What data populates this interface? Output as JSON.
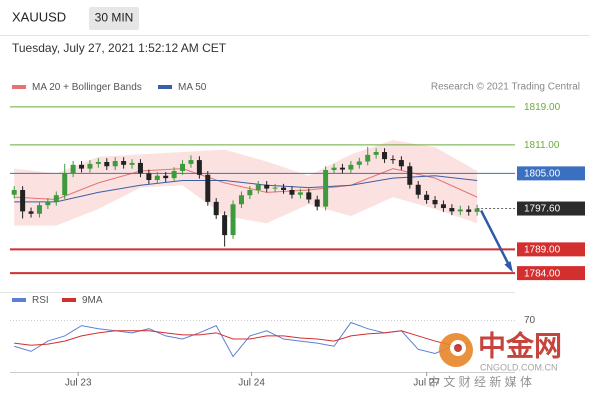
{
  "header": {
    "symbol": "XAUUSD",
    "timeframe": "30 MIN",
    "timestamp": "Tuesday, July 27, 2021 1:52:12 AM CET"
  },
  "chart_data": [
    {
      "type": "candlestick",
      "source": "Research © 2021 Trading Central",
      "xlim": [
        -0.5,
        59.5
      ],
      "xticks": [
        {
          "value": 7.6,
          "label": "Jul 23"
        },
        {
          "value": 28.2,
          "label": "Jul 24"
        },
        {
          "value": 49,
          "label": "Jul 27"
        }
      ],
      "ylim": [
        1781.5,
        1821.5
      ],
      "levels": [
        {
          "value": 1819,
          "label": "1819.00",
          "color": "#6aaa3a",
          "line": "thin",
          "boxed": false
        },
        {
          "value": 1811,
          "label": "1811.00",
          "color": "#6aaa3a",
          "line": "thin",
          "boxed": false
        },
        {
          "value": 1805,
          "label": "1805.00",
          "color": "#3b6fc0",
          "line": "thin",
          "boxed": true
        },
        {
          "value": 1797.6,
          "label": "1797.60",
          "color": "#2b2b2b",
          "line": "none",
          "boxed": true
        },
        {
          "value": 1789,
          "label": "1789.00",
          "color": "#d32f2f",
          "line": "thick",
          "boxed": true
        },
        {
          "value": 1784,
          "label": "1784.00",
          "color": "#d32f2f",
          "line": "thick",
          "boxed": true
        }
      ],
      "candles": {
        "up_color": "#3d9a3d",
        "down_color": "#222222",
        "x": [
          0,
          1,
          2,
          3,
          4,
          5,
          6,
          7,
          8,
          9,
          10,
          11,
          12,
          13,
          14,
          15,
          16,
          17,
          18,
          19,
          20,
          21,
          22,
          23,
          24,
          25,
          26,
          27,
          28,
          29,
          30,
          31,
          32,
          33,
          34,
          35,
          36,
          37,
          38,
          39,
          40,
          41,
          42,
          43,
          44,
          45,
          46,
          47,
          48,
          49,
          50,
          51,
          52,
          53,
          54,
          55
        ],
        "open": [
          1800.5,
          1801.5,
          1797.0,
          1796.5,
          1798.3,
          1799.0,
          1800.4,
          1805.0,
          1806.8,
          1806.0,
          1807.0,
          1807.4,
          1806.5,
          1807.6,
          1806.8,
          1807.2,
          1805.0,
          1803.6,
          1804.5,
          1804.0,
          1805.5,
          1807.0,
          1807.8,
          1804.7,
          1799.0,
          1796.2,
          1792.0,
          1798.5,
          1800.4,
          1801.5,
          1802.6,
          1801.8,
          1802.0,
          1801.5,
          1800.5,
          1801.0,
          1799.5,
          1798.0,
          1805.7,
          1806.2,
          1805.8,
          1806.8,
          1807.5,
          1808.9,
          1809.5,
          1808.0,
          1807.8,
          1806.5,
          1802.6,
          1800.5,
          1799.4,
          1798.5,
          1797.7,
          1797.0,
          1797.4,
          1796.9
        ],
        "high": [
          1802.3,
          1802.3,
          1797.8,
          1799.1,
          1799.8,
          1801.2,
          1807.0,
          1807.6,
          1807.6,
          1807.8,
          1808.2,
          1808.2,
          1808.4,
          1808.4,
          1808.0,
          1808.0,
          1805.8,
          1805.3,
          1805.3,
          1806.3,
          1807.8,
          1808.8,
          1808.6,
          1805.5,
          1799.8,
          1797.0,
          1799.3,
          1801.2,
          1802.3,
          1803.4,
          1803.4,
          1802.8,
          1802.8,
          1802.3,
          1801.8,
          1801.8,
          1800.3,
          1806.5,
          1807.0,
          1807.0,
          1807.6,
          1808.3,
          1810.6,
          1810.3,
          1810.3,
          1808.8,
          1808.6,
          1807.3,
          1803.4,
          1801.3,
          1800.2,
          1799.3,
          1798.5,
          1798.2,
          1798.2,
          1798.4
        ],
        "low": [
          1799.7,
          1795.5,
          1795.7,
          1795.7,
          1797.5,
          1798.2,
          1799.6,
          1804.2,
          1805.2,
          1805.2,
          1806.2,
          1805.7,
          1805.7,
          1806.0,
          1806.0,
          1804.2,
          1802.8,
          1802.8,
          1803.2,
          1803.2,
          1804.7,
          1806.2,
          1803.9,
          1798.2,
          1795.4,
          1789.6,
          1791.2,
          1797.7,
          1799.6,
          1800.7,
          1801.0,
          1801.0,
          1800.7,
          1799.7,
          1799.7,
          1798.7,
          1797.2,
          1797.2,
          1804.9,
          1805.0,
          1805.0,
          1806.0,
          1806.7,
          1808.1,
          1807.2,
          1807.0,
          1805.7,
          1801.8,
          1799.7,
          1798.6,
          1797.7,
          1796.9,
          1796.2,
          1796.2,
          1796.1,
          1796.1
        ],
        "close": [
          1801.5,
          1797.0,
          1796.5,
          1798.3,
          1799.0,
          1800.4,
          1805.0,
          1806.8,
          1806.0,
          1807.0,
          1807.4,
          1806.5,
          1807.6,
          1806.8,
          1807.2,
          1805.0,
          1803.6,
          1804.5,
          1804.0,
          1805.5,
          1807.0,
          1807.8,
          1804.7,
          1799.0,
          1796.2,
          1792.0,
          1798.5,
          1800.4,
          1801.5,
          1802.6,
          1801.8,
          1802.0,
          1801.5,
          1800.5,
          1801.0,
          1799.5,
          1798.0,
          1805.7,
          1806.2,
          1805.8,
          1806.8,
          1807.5,
          1808.9,
          1809.5,
          1808.0,
          1807.8,
          1806.5,
          1802.6,
          1800.5,
          1799.4,
          1798.5,
          1797.7,
          1797.0,
          1797.4,
          1796.9,
          1797.6
        ]
      },
      "series": [
        {
          "name": "MA 20 + Bollinger Bands",
          "color": "#e57373",
          "band_color": "#fbd9d9",
          "x": [
            0,
            5,
            10,
            15,
            20,
            25,
            30,
            35,
            40,
            45,
            50,
            55
          ],
          "values": [
            1800,
            1799.5,
            1803,
            1805.5,
            1806,
            1803,
            1801,
            1801.5,
            1802.5,
            1806,
            1804,
            1800
          ],
          "upper": [
            1806,
            1805,
            1808.5,
            1809,
            1809.5,
            1810,
            1807.5,
            1804.5,
            1809,
            1812,
            1810.5,
            1805.5
          ],
          "lower": [
            1794,
            1794,
            1797.5,
            1802,
            1802.5,
            1796,
            1794.5,
            1798.5,
            1796,
            1800,
            1797.5,
            1794.5
          ]
        },
        {
          "name": "MA 50",
          "color": "#3b5ea6",
          "x": [
            0,
            5,
            10,
            15,
            20,
            25,
            30,
            35,
            40,
            45,
            50,
            55
          ],
          "values": [
            1799,
            1799,
            1801,
            1802.5,
            1803.5,
            1803.5,
            1802.5,
            1802,
            1802.5,
            1804,
            1804.5,
            1803.5
          ]
        }
      ]
    },
    {
      "type": "line",
      "xlim": [
        -0.5,
        59.5
      ],
      "ylim": [
        20,
        85
      ],
      "yticks": [
        70
      ],
      "series": [
        {
          "name": "RSI",
          "color": "#5b7fd6",
          "x": [
            0,
            2,
            4,
            6,
            8,
            10,
            12,
            14,
            16,
            18,
            20,
            22,
            24,
            26,
            28,
            30,
            32,
            34,
            36,
            38,
            40,
            42,
            44,
            46,
            48,
            50,
            52,
            54
          ],
          "values": [
            45,
            40,
            50,
            55,
            65,
            62,
            60,
            58,
            62,
            55,
            52,
            58,
            65,
            35,
            55,
            60,
            52,
            50,
            48,
            45,
            68,
            62,
            58,
            60,
            42,
            38,
            45,
            48
          ]
        },
        {
          "name": "9MA",
          "color": "#d32f2f",
          "x": [
            0,
            2,
            4,
            6,
            8,
            10,
            12,
            14,
            16,
            18,
            20,
            22,
            24,
            26,
            28,
            30,
            32,
            34,
            36,
            38,
            40,
            42,
            44,
            46,
            48,
            50,
            52,
            54
          ],
          "values": [
            48,
            46,
            47,
            50,
            55,
            58,
            60,
            60,
            60,
            58,
            56,
            56,
            58,
            52,
            52,
            55,
            55,
            53,
            52,
            50,
            55,
            57,
            58,
            60,
            55,
            50,
            46,
            45
          ]
        }
      ]
    }
  ],
  "watermark": {
    "brand": "中金网",
    "domain": "CNGOLD.COM.CN",
    "slogan": "中 文 财 经 新 媒 体"
  }
}
